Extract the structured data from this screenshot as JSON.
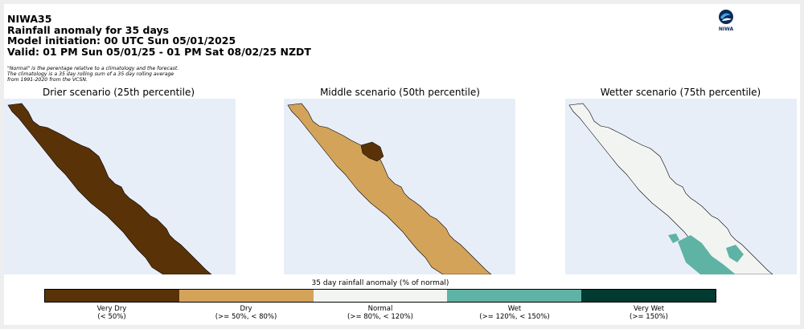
{
  "header": {
    "line1": "NIWA35",
    "line2": "Rainfall anomaly for 35 days",
    "line3": "Model initiation: 00 UTC Sun 05/01/2025",
    "line4": "Valid: 01 PM Sun 05/01/25 - 01 PM Sat 08/02/25 NZDT"
  },
  "note": "\"Normal\" is the perentage relative to a climatology and the forecast. The climatology is a 35 day rolling sum of a 35 day rolling average from 1991-2020 from the VCSN.",
  "logo": {
    "text": "NIWA",
    "icon": "niwa-logo-icon"
  },
  "panels": [
    {
      "title": "Drier scenario (25th percentile)",
      "fill": "#5a3208",
      "accent": "#5a3208"
    },
    {
      "title": "Middle scenario (50th percentile)",
      "fill": "#d4a35a",
      "accent": "#5a3208"
    },
    {
      "title": "Wetter scenario (75th percentile)",
      "fill": "#f2f4f2",
      "accent": "#5eb3a5"
    }
  ],
  "colorbar": {
    "title": "35 day rainfall anomaly (% of normal)",
    "categories": [
      {
        "name": "Very Dry",
        "range": "(< 50%)",
        "color": "#5a3208"
      },
      {
        "name": "Dry",
        "range": "(>= 50%, < 80%)",
        "color": "#d4a35a"
      },
      {
        "name": "Normal",
        "range": "(>= 80%, < 120%)",
        "color": "#f2f4f2"
      },
      {
        "name": "Wet",
        "range": "(>= 120%, < 150%)",
        "color": "#5eb3a5"
      },
      {
        "name": "Very Wet",
        "range": "(>= 150%)",
        "color": "#013a30"
      }
    ]
  }
}
